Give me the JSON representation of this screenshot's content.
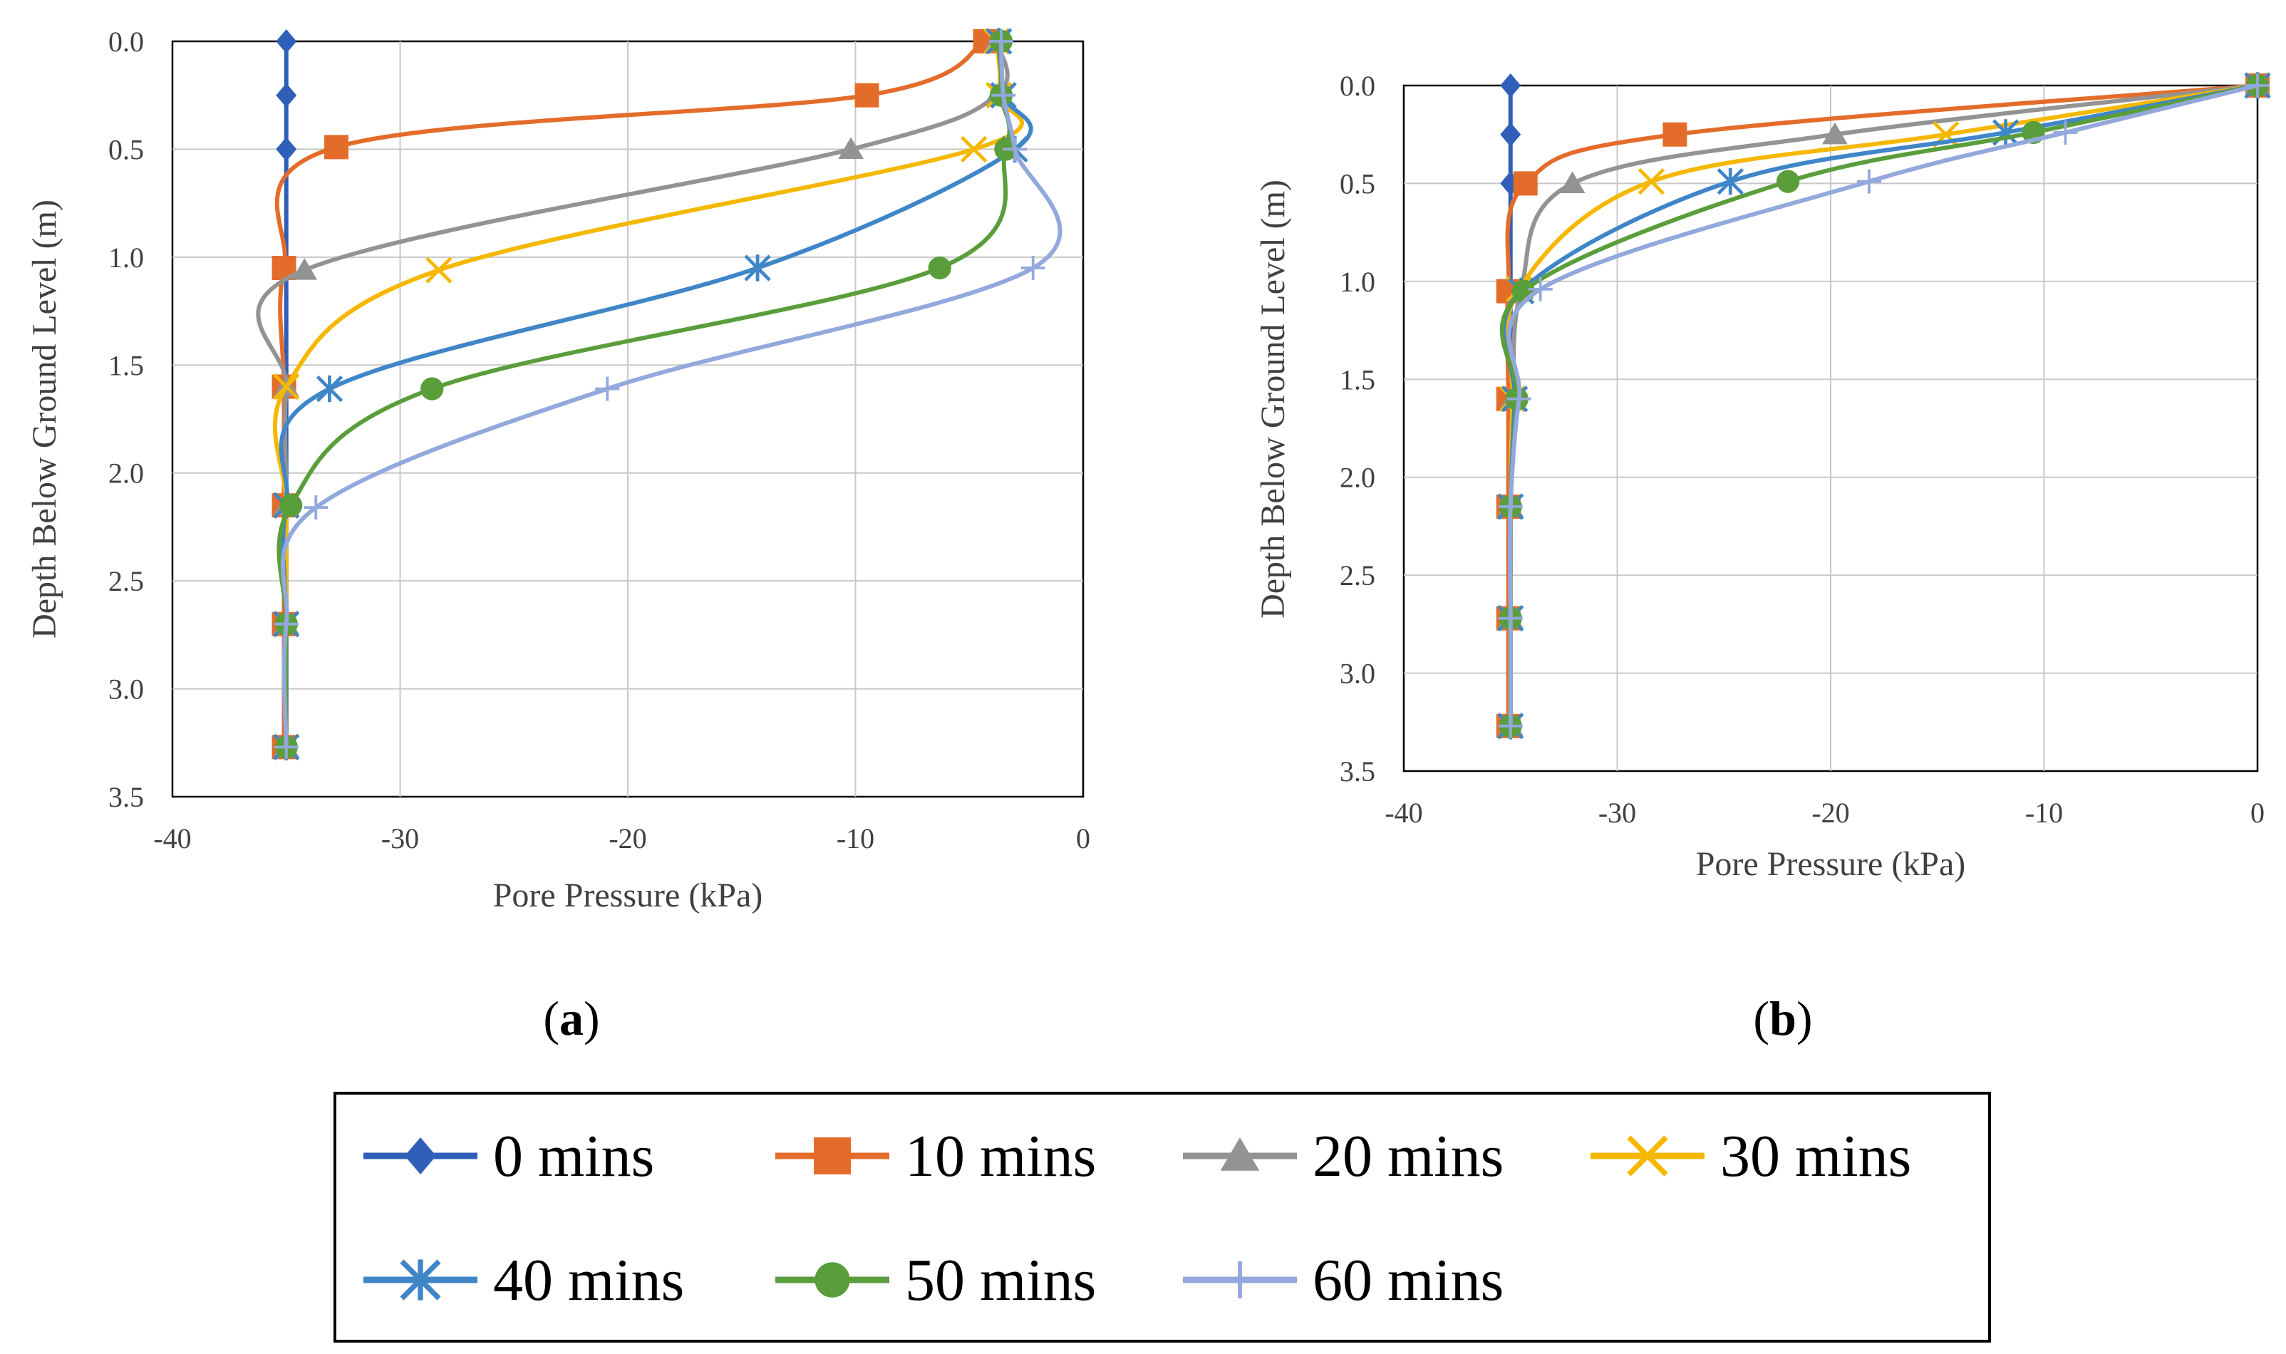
{
  "colors": {
    "0 mins": "#2f5fb8",
    "10 mins": "#e46c2a",
    "20 mins": "#939393",
    "30 mins": "#f5b800",
    "40 mins": "#3f86c8",
    "50 mins": "#5a9e3c",
    "60 mins": "#93a8dc"
  },
  "legend": [
    {
      "name": "0 mins",
      "marker": "diamond"
    },
    {
      "name": "10 mins",
      "marker": "square"
    },
    {
      "name": "20 mins",
      "marker": "triangle"
    },
    {
      "name": "30 mins",
      "marker": "x"
    },
    {
      "name": "40 mins",
      "marker": "star"
    },
    {
      "name": "50 mins",
      "marker": "circle"
    },
    {
      "name": "60 mins",
      "marker": "plus"
    }
  ],
  "chart_data": [
    {
      "type": "line",
      "panel_label": "(a)",
      "panel_letter": "a",
      "xlabel": "Pore Pressure (kPa)",
      "ylabel": "Depth Below Ground Level (m)",
      "xlim": [
        -40,
        0
      ],
      "ylim": [
        0,
        3.5
      ],
      "y_inverted": true,
      "grid": true,
      "xticks": [
        "-40",
        "-30",
        "-20",
        "-10",
        "0"
      ],
      "yticks": [
        "0.0",
        "0.5",
        "1.0",
        "1.5",
        "2.0",
        "2.5",
        "3.0",
        "3.5"
      ],
      "series": [
        {
          "name": "0 mins",
          "marker": "diamond",
          "points": [
            [
              -35,
              0
            ],
            [
              -35,
              0.25
            ],
            [
              -35,
              0.5
            ],
            [
              -35,
              1.05
            ],
            [
              -35,
              1.6
            ],
            [
              -35,
              2.15
            ],
            [
              -35,
              2.7
            ],
            [
              -35,
              3.27
            ]
          ]
        },
        {
          "name": "10 mins",
          "marker": "square",
          "points": [
            [
              -4.3,
              0
            ],
            [
              -9.5,
              0.25
            ],
            [
              -32.8,
              0.49
            ],
            [
              -35.1,
              1.05
            ],
            [
              -35.1,
              1.6
            ],
            [
              -35.1,
              2.15
            ],
            [
              -35.1,
              2.7
            ],
            [
              -35.1,
              3.27
            ]
          ]
        },
        {
          "name": "20 mins",
          "marker": "triangle",
          "points": [
            [
              -3.8,
              0
            ],
            [
              -3.8,
              0.25
            ],
            [
              -10.2,
              0.5
            ],
            [
              -34.2,
              1.06
            ],
            [
              -35,
              1.6
            ],
            [
              -35,
              2.15
            ],
            [
              -35,
              2.7
            ],
            [
              -35,
              3.27
            ]
          ]
        },
        {
          "name": "30 mins",
          "marker": "x",
          "points": [
            [
              -3.8,
              0
            ],
            [
              -3.7,
              0.25
            ],
            [
              -4.8,
              0.5
            ],
            [
              -28.3,
              1.06
            ],
            [
              -35,
              1.6
            ],
            [
              -35,
              2.15
            ],
            [
              -35,
              2.7
            ],
            [
              -35,
              3.27
            ]
          ]
        },
        {
          "name": "40 mins",
          "marker": "star",
          "points": [
            [
              -3.7,
              0
            ],
            [
              -3.5,
              0.25
            ],
            [
              -3.0,
              0.5
            ],
            [
              -14.3,
              1.05
            ],
            [
              -33.1,
              1.61
            ],
            [
              -35,
              2.15
            ],
            [
              -35,
              2.7
            ],
            [
              -35,
              3.27
            ]
          ]
        },
        {
          "name": "50 mins",
          "marker": "circle",
          "points": [
            [
              -3.6,
              0
            ],
            [
              -3.6,
              0.25
            ],
            [
              -3.4,
              0.5
            ],
            [
              -6.3,
              1.05
            ],
            [
              -28.6,
              1.61
            ],
            [
              -34.8,
              2.15
            ],
            [
              -35,
              2.7
            ],
            [
              -35,
              3.27
            ]
          ]
        },
        {
          "name": "60 mins",
          "marker": "plus",
          "points": [
            [
              -3.6,
              0
            ],
            [
              -3.5,
              0.25
            ],
            [
              -3.0,
              0.5
            ],
            [
              -2.2,
              1.05
            ],
            [
              -20.9,
              1.61
            ],
            [
              -33.7,
              2.16
            ],
            [
              -35,
              2.7
            ],
            [
              -35,
              3.27
            ]
          ]
        }
      ]
    },
    {
      "type": "line",
      "panel_label": "(b)",
      "panel_letter": "b",
      "xlabel": "Pore Pressure (kPa)",
      "ylabel": "Depth Below Ground Level (m)",
      "xlim": [
        -40,
        0
      ],
      "ylim": [
        0,
        3.5
      ],
      "y_inverted": true,
      "grid": true,
      "xticks": [
        "-40",
        "-30",
        "-20",
        "-10",
        "0"
      ],
      "yticks": [
        "0.0",
        "0.5",
        "1.0",
        "1.5",
        "2.0",
        "2.5",
        "3.0",
        "3.5"
      ],
      "series": [
        {
          "name": "0 mins",
          "marker": "diamond",
          "points": [
            [
              -35,
              0
            ],
            [
              -35,
              0.25
            ],
            [
              -35,
              0.5
            ],
            [
              -35,
              1.05
            ],
            [
              -35,
              1.6
            ],
            [
              -35,
              2.15
            ],
            [
              -35,
              2.72
            ],
            [
              -35,
              3.27
            ]
          ]
        },
        {
          "name": "10 mins",
          "marker": "square",
          "points": [
            [
              0,
              0
            ],
            [
              -27.3,
              0.25
            ],
            [
              -34.3,
              0.5
            ],
            [
              -35.1,
              1.05
            ],
            [
              -35.1,
              1.6
            ],
            [
              -35.1,
              2.15
            ],
            [
              -35.1,
              2.72
            ],
            [
              -35.1,
              3.27
            ]
          ]
        },
        {
          "name": "20 mins",
          "marker": "triangle",
          "points": [
            [
              0,
              0
            ],
            [
              -19.8,
              0.25
            ],
            [
              -32.1,
              0.5
            ],
            [
              -34.5,
              1.04
            ],
            [
              -34.9,
              1.6
            ],
            [
              -35,
              2.15
            ],
            [
              -35,
              2.72
            ],
            [
              -35,
              3.27
            ]
          ]
        },
        {
          "name": "30 mins",
          "marker": "x",
          "points": [
            [
              0,
              0
            ],
            [
              -14.6,
              0.25
            ],
            [
              -28.4,
              0.49
            ],
            [
              -34.6,
              1.04
            ],
            [
              -34.9,
              1.6
            ],
            [
              -35,
              2.15
            ],
            [
              -35,
              2.72
            ],
            [
              -35,
              3.27
            ]
          ]
        },
        {
          "name": "40 mins",
          "marker": "star",
          "points": [
            [
              0,
              0
            ],
            [
              -11.8,
              0.24
            ],
            [
              -24.7,
              0.49
            ],
            [
              -34.5,
              1.05
            ],
            [
              -34.8,
              1.6
            ],
            [
              -35,
              2.15
            ],
            [
              -35,
              2.72
            ],
            [
              -35,
              3.27
            ]
          ]
        },
        {
          "name": "50 mins",
          "marker": "circle",
          "points": [
            [
              0,
              0
            ],
            [
              -10.5,
              0.24
            ],
            [
              -22.0,
              0.49
            ],
            [
              -34.4,
              1.05
            ],
            [
              -34.7,
              1.6
            ],
            [
              -35,
              2.15
            ],
            [
              -35,
              2.72
            ],
            [
              -35,
              3.27
            ]
          ]
        },
        {
          "name": "60 mins",
          "marker": "plus",
          "points": [
            [
              0,
              0
            ],
            [
              -9.0,
              0.24
            ],
            [
              -18.2,
              0.49
            ],
            [
              -33.6,
              1.04
            ],
            [
              -34.6,
              1.6
            ],
            [
              -35,
              2.15
            ],
            [
              -35,
              2.72
            ],
            [
              -35,
              3.27
            ]
          ]
        }
      ]
    }
  ]
}
